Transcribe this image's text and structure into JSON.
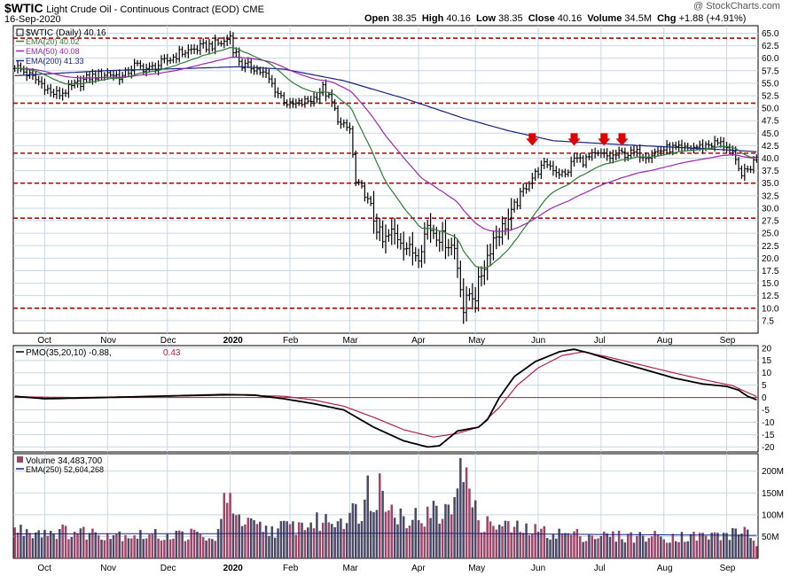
{
  "header": {
    "symbol": "$WTIC",
    "name": "Light Crude Oil - Continuous Contract (EOD)",
    "exchange": "CME",
    "date": "16-Sep-2020",
    "open_label": "Open",
    "open": "38.35",
    "high_label": "High",
    "high": "40.16",
    "low_label": "Low",
    "low": "38.35",
    "close_label": "Close",
    "close": "40.16",
    "volume_label": "Volume",
    "volume": "34.5M",
    "chg_label": "Chg",
    "chg": "+1.88 (+4.91%)",
    "brand": "@ StockCharts.com"
  },
  "legend": {
    "price": "$WTIC (Daily) 40.16",
    "ema20": "EMA(20) 40.02",
    "ema50": "EMA(50) 40.08",
    "ema200": "EMA(200) 41.33",
    "pmo_name": "PMO(35,20,10)",
    "pmo_val": "-0.88,",
    "pmo_sig": "0.43",
    "vol_name": "Volume 34,483,700",
    "vol_ema": "EMA(250) 52,604,268"
  },
  "colors": {
    "price": "#000000",
    "ema20": "#2e7d32",
    "ema50": "#9c27b0",
    "ema200": "#1a237e",
    "support": "#c00000",
    "arrow": "#dd0000",
    "grid": "#c8d7e6",
    "vol_up": "#a0456a",
    "vol_down": "#4a4a66",
    "pmo_signal": "#b0204a"
  },
  "chart_data": [
    {
      "type": "ohlc",
      "name": "price",
      "title": "$WTIC (Daily) 40.16",
      "ylim": [
        5,
        66.5
      ],
      "yticks": [
        "65.0",
        "62.5",
        "60.0",
        "57.5",
        "55.0",
        "52.5",
        "50.0",
        "47.5",
        "45.0",
        "42.5",
        "40.0",
        "37.5",
        "35.0",
        "32.5",
        "30.0",
        "27.5",
        "25.0",
        "22.5",
        "20.0",
        "17.5",
        "15.0",
        "12.5",
        "10.0",
        "7.5"
      ],
      "x_labels": [
        "Oct",
        "Nov",
        "Dec",
        "2020",
        "Feb",
        "Mar",
        "Apr",
        "May",
        "Jun",
        "Jul",
        "Aug",
        "Sep"
      ],
      "x_label_days": [
        10,
        31,
        51,
        72,
        92,
        112,
        135,
        154,
        175,
        196,
        217,
        238
      ],
      "grid": true,
      "support_levels": [
        64,
        51,
        41,
        35,
        28,
        10
      ],
      "arrow_days": [
        173,
        187,
        197,
        203
      ],
      "arrow_tip_value": 42.5,
      "anchors": [
        [
          0,
          58.5
        ],
        [
          10,
          54.5
        ],
        [
          12,
          53.0
        ],
        [
          15,
          52.8
        ],
        [
          20,
          54.5
        ],
        [
          25,
          56.2
        ],
        [
          31,
          57.0
        ],
        [
          36,
          56.3
        ],
        [
          40,
          58.5
        ],
        [
          45,
          57.8
        ],
        [
          51,
          59.5
        ],
        [
          55,
          61.0
        ],
        [
          60,
          61.8
        ],
        [
          65,
          62.5
        ],
        [
          70,
          63.2
        ],
        [
          72,
          64.5
        ],
        [
          73,
          62.0
        ],
        [
          76,
          58.5
        ],
        [
          80,
          58.2
        ],
        [
          84,
          56.5
        ],
        [
          88,
          53.0
        ],
        [
          92,
          50.5
        ],
        [
          96,
          51.0
        ],
        [
          100,
          52.0
        ],
        [
          103,
          54.0
        ],
        [
          106,
          51.0
        ],
        [
          109,
          46.5
        ],
        [
          112,
          45.8
        ],
        [
          113,
          40.5
        ],
        [
          114,
          35.0
        ],
        [
          117,
          33.0
        ],
        [
          120,
          28.0
        ],
        [
          123,
          23.0
        ],
        [
          126,
          25.0
        ],
        [
          129,
          24.0
        ],
        [
          132,
          21.5
        ],
        [
          135,
          21.0
        ],
        [
          138,
          26.5
        ],
        [
          141,
          25.0
        ],
        [
          144,
          23.5
        ],
        [
          147,
          22.0
        ],
        [
          149,
          15.0
        ],
        [
          150,
          9.5
        ],
        [
          152,
          13.0
        ],
        [
          154,
          12.5
        ],
        [
          156,
          17.0
        ],
        [
          158,
          20.5
        ],
        [
          160,
          24.0
        ],
        [
          163,
          26.0
        ],
        [
          166,
          28.5
        ],
        [
          169,
          32.5
        ],
        [
          172,
          35.5
        ],
        [
          175,
          37.5
        ],
        [
          178,
          39.0
        ],
        [
          181,
          37.5
        ],
        [
          184,
          36.5
        ],
        [
          187,
          40.0
        ],
        [
          190,
          39.5
        ],
        [
          193,
          40.3
        ],
        [
          196,
          40.6
        ],
        [
          199,
          40.2
        ],
        [
          202,
          40.8
        ],
        [
          205,
          40.9
        ],
        [
          208,
          41.0
        ],
        [
          211,
          40.7
        ],
        [
          214,
          41.2
        ],
        [
          217,
          41.8
        ],
        [
          220,
          42.0
        ],
        [
          223,
          41.6
        ],
        [
          226,
          42.1
        ],
        [
          229,
          42.3
        ],
        [
          232,
          42.8
        ],
        [
          235,
          43.0
        ],
        [
          238,
          42.5
        ],
        [
          240,
          40.5
        ],
        [
          242,
          37.5
        ],
        [
          244,
          37.0
        ],
        [
          246,
          38.3
        ],
        [
          248,
          40.2
        ]
      ],
      "ema200_anchors": [
        [
          0,
          56.5
        ],
        [
          30,
          57.5
        ],
        [
          60,
          58.0
        ],
        [
          75,
          58.3
        ],
        [
          90,
          57.8
        ],
        [
          110,
          55.5
        ],
        [
          130,
          52.0
        ],
        [
          150,
          48.0
        ],
        [
          165,
          45.5
        ],
        [
          180,
          43.5
        ],
        [
          200,
          42.8
        ],
        [
          220,
          42.2
        ],
        [
          240,
          41.6
        ],
        [
          248,
          41.3
        ]
      ],
      "ema_labels": [
        "EMA(20) 40.02",
        "EMA(50) 40.08",
        "EMA(200) 41.33"
      ]
    },
    {
      "type": "line",
      "name": "PMO(35,20,10)",
      "ylim": [
        -22,
        21
      ],
      "yticks": [
        "20",
        "15",
        "10",
        "5",
        "0",
        "-5",
        "-10",
        "-15",
        "-20"
      ],
      "zero_line": true,
      "series": [
        {
          "name": "-0.88",
          "anchors": [
            [
              0,
              0.5
            ],
            [
              10,
              -0.5
            ],
            [
              30,
              0.0
            ],
            [
              50,
              0.6
            ],
            [
              70,
              1.2
            ],
            [
              80,
              1.0
            ],
            [
              90,
              -0.5
            ],
            [
              100,
              -2.5
            ],
            [
              110,
              -5.0
            ],
            [
              120,
              -12.0
            ],
            [
              130,
              -17.5
            ],
            [
              138,
              -20.0
            ],
            [
              142,
              -19.5
            ],
            [
              148,
              -13.5
            ],
            [
              155,
              -12.0
            ],
            [
              158,
              -9.0
            ],
            [
              162,
              0.0
            ],
            [
              167,
              8.5
            ],
            [
              174,
              14.5
            ],
            [
              182,
              18.5
            ],
            [
              187,
              19.5
            ],
            [
              192,
              18.0
            ],
            [
              200,
              15.0
            ],
            [
              210,
              11.5
            ],
            [
              220,
              8.0
            ],
            [
              230,
              5.5
            ],
            [
              238,
              4.5
            ],
            [
              242,
              3.0
            ],
            [
              245,
              0.5
            ],
            [
              248,
              -0.88
            ]
          ]
        },
        {
          "name": "0.43",
          "anchors": [
            [
              0,
              0.3
            ],
            [
              20,
              0.0
            ],
            [
              50,
              0.5
            ],
            [
              75,
              1.0
            ],
            [
              90,
              0.5
            ],
            [
              100,
              -1.0
            ],
            [
              110,
              -3.5
            ],
            [
              120,
              -8.0
            ],
            [
              130,
              -13.0
            ],
            [
              140,
              -16.0
            ],
            [
              148,
              -14.5
            ],
            [
              155,
              -12.0
            ],
            [
              162,
              -4.0
            ],
            [
              168,
              5.0
            ],
            [
              175,
              12.0
            ],
            [
              183,
              17.0
            ],
            [
              190,
              18.5
            ],
            [
              198,
              16.5
            ],
            [
              210,
              13.0
            ],
            [
              222,
              9.5
            ],
            [
              232,
              6.8
            ],
            [
              240,
              4.8
            ],
            [
              245,
              2.0
            ],
            [
              248,
              0.43
            ]
          ]
        }
      ]
    },
    {
      "type": "bar",
      "name": "Volume",
      "ylim": [
        0,
        240
      ],
      "yunit": "M",
      "yticks": [
        "200M",
        "150M",
        "100M",
        "50M"
      ],
      "ytick_values": [
        200,
        150,
        100,
        50
      ],
      "vol_anchors": [
        [
          0,
          65
        ],
        [
          30,
          58
        ],
        [
          45,
          52
        ],
        [
          60,
          55
        ],
        [
          66,
          40
        ],
        [
          70,
          85
        ],
        [
          72,
          150
        ],
        [
          75,
          80
        ],
        [
          85,
          65
        ],
        [
          100,
          80
        ],
        [
          110,
          95
        ],
        [
          118,
          120
        ],
        [
          122,
          160
        ],
        [
          126,
          110
        ],
        [
          132,
          95
        ],
        [
          140,
          95
        ],
        [
          146,
          110
        ],
        [
          149,
          230
        ],
        [
          152,
          130
        ],
        [
          156,
          80
        ],
        [
          170,
          65
        ],
        [
          185,
          55
        ],
        [
          200,
          50
        ],
        [
          230,
          50
        ],
        [
          240,
          55
        ],
        [
          244,
          70
        ],
        [
          248,
          35
        ]
      ],
      "ema250_anchors": [
        [
          0,
          56
        ],
        [
          60,
          56.5
        ],
        [
          120,
          57.5
        ],
        [
          150,
          57.0
        ],
        [
          200,
          54.5
        ],
        [
          248,
          52.6
        ]
      ],
      "spikes": [
        [
          70,
          150
        ],
        [
          72,
          150
        ],
        [
          118,
          190
        ],
        [
          122,
          195
        ],
        [
          149,
          230
        ],
        [
          150,
          175
        ],
        [
          152,
          160
        ],
        [
          140,
          132
        ],
        [
          125,
          110
        ],
        [
          244,
          72
        ]
      ]
    }
  ]
}
